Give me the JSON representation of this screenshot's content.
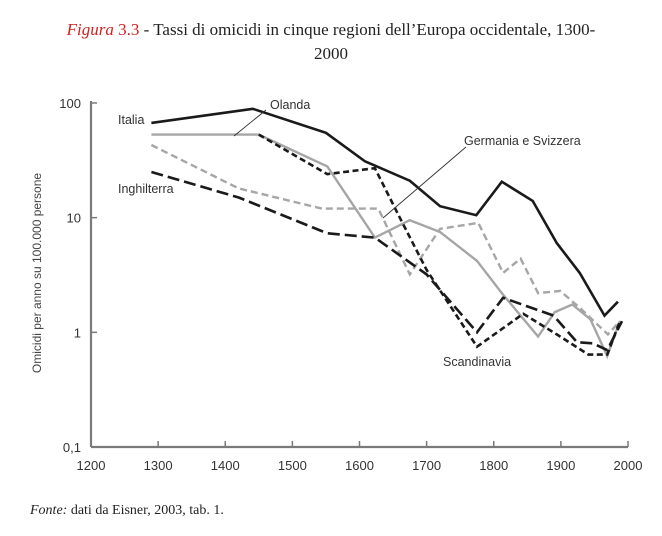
{
  "caption": {
    "figure_label": "Figura",
    "figure_number": "3.3",
    "title_line1": " - Tassi di omicidi in cinque regioni dell’Europa occidentale, 1300-",
    "title_line2": "2000"
  },
  "source": {
    "label": "Fonte:",
    "text": " dati da Eisner, 2003, tab. 1."
  },
  "chart_data": {
    "type": "line",
    "title": "Tassi di omicidi in cinque regioni dell’Europa occidentale, 1300-2000",
    "xlabel": "",
    "ylabel": "Omicidi per anno su 100.000 persone",
    "xlim": [
      1200,
      2000
    ],
    "ylim": [
      0.1,
      100
    ],
    "yscale": "log",
    "grid": false,
    "x_ticks": [
      1200,
      1300,
      1400,
      1500,
      1600,
      1700,
      1800,
      1900,
      2000
    ],
    "x_tick_labels": [
      "1200",
      "1300",
      "1400",
      "1500",
      "1600",
      "1700",
      "1800",
      "1900",
      "2000"
    ],
    "y_ticks": [
      0.1,
      1,
      10,
      100
    ],
    "y_tick_labels": [
      "0,1",
      "1",
      "10",
      "100"
    ],
    "series": [
      {
        "name": "Italia",
        "style": "solid",
        "color": "#1a1a1a",
        "x": [
          1290,
          1441,
          1550,
          1608,
          1675,
          1720,
          1774,
          1812,
          1858,
          1894,
          1928,
          1965,
          1985
        ],
        "y": [
          67,
          89,
          55,
          31,
          21,
          12.6,
          10.5,
          20.6,
          14,
          6,
          3.3,
          1.4,
          1.85
        ]
      },
      {
        "name": "Olanda",
        "style": "solid",
        "color": "#a6a6a6",
        "x": [
          1290,
          1450,
          1552,
          1623,
          1675,
          1720,
          1775,
          1812,
          1866,
          1891,
          1917,
          1944,
          1969,
          1988
        ],
        "y": [
          53,
          53,
          28,
          6.7,
          9.5,
          7.5,
          4.2,
          2.2,
          0.92,
          1.5,
          1.75,
          1.3,
          0.62,
          1.25
        ]
      },
      {
        "name": "Germania e Svizzera",
        "style": "dashed",
        "color": "#a6a6a6",
        "x": [
          1290,
          1420,
          1544,
          1628,
          1675,
          1720,
          1777,
          1814,
          1840,
          1866,
          1899,
          1930,
          1970,
          1988
        ],
        "y": [
          43,
          18,
          12,
          12,
          3.2,
          8,
          9,
          3.3,
          4.4,
          2.2,
          2.3,
          1.6,
          0.96,
          1.25
        ]
      },
      {
        "name": "Inghilterra",
        "style": "long-dashed",
        "color": "#1a1a1a",
        "x": [
          1290,
          1420,
          1552,
          1623,
          1700,
          1775,
          1814,
          1889,
          1924,
          1948,
          1969,
          1991
        ],
        "y": [
          25,
          15,
          7.3,
          6.7,
          3.2,
          1.0,
          2.0,
          1.4,
          0.82,
          0.8,
          0.7,
          1.25
        ]
      },
      {
        "name": "Scandinavia",
        "style": "short-dashed",
        "color": "#1a1a1a",
        "x": [
          1450,
          1552,
          1623,
          1660,
          1700,
          1775,
          1844,
          1894,
          1941,
          1969,
          1988
        ],
        "y": [
          53,
          24,
          27,
          10,
          3.5,
          0.75,
          1.45,
          0.96,
          0.64,
          0.64,
          1.25
        ]
      }
    ],
    "annotations": [
      {
        "text": "Italia",
        "series": "Italia"
      },
      {
        "text": "Olanda",
        "series": "Olanda"
      },
      {
        "text": "Germania e Svizzera",
        "series": "Germania e Svizzera"
      },
      {
        "text": "Inghilterra",
        "series": "Inghilterra"
      },
      {
        "text": "Scandinavia",
        "series": "Scandinavia"
      }
    ]
  }
}
